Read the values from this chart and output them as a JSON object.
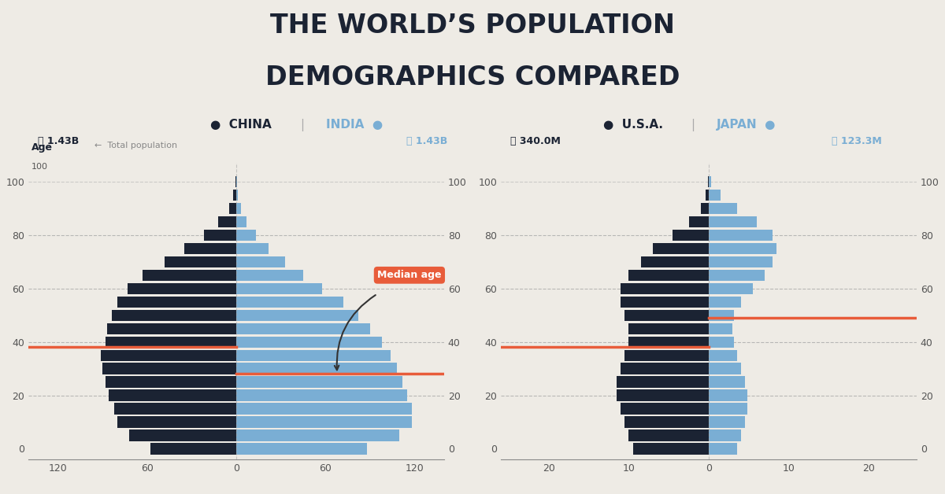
{
  "title_line1": "THE WORLD’S POPULATION",
  "title_line2": "DEMOGRAPHICS COMPARED",
  "bg_color": "#eeebe5",
  "dark_bar_color": "#1b2333",
  "light_bar_color": "#7aaed4",
  "median_line_color": "#e85c3a",
  "grid_color": "#aaaaaa",
  "left_chart": {
    "country1": "CHINA",
    "country2": "INDIA",
    "pop1": "ⓘ 1.43B",
    "pop2": "ⓘ 1.43B",
    "pop_label": "←  Total population",
    "median_age_china": 38,
    "median_age_india": 28,
    "xlim": 140,
    "xticks_vals": [
      120,
      60,
      0,
      60,
      120
    ],
    "xticks_labels": [
      "120",
      "60",
      "0",
      "60",
      "120"
    ],
    "ages": [
      0,
      5,
      10,
      15,
      20,
      25,
      30,
      35,
      40,
      45,
      50,
      55,
      60,
      65,
      70,
      75,
      80,
      85,
      90,
      95,
      100
    ],
    "china_vals": [
      58,
      72,
      80,
      82,
      86,
      88,
      90,
      91,
      88,
      87,
      84,
      80,
      73,
      63,
      48,
      35,
      22,
      12,
      5,
      2,
      0.5
    ],
    "india_vals": [
      88,
      110,
      118,
      118,
      115,
      112,
      108,
      104,
      98,
      90,
      82,
      72,
      58,
      45,
      33,
      22,
      13,
      7,
      3,
      1,
      0.3
    ]
  },
  "right_chart": {
    "country1": "U.S.A.",
    "country2": "JAPAN",
    "pop1": "ⓘ 340.0M",
    "pop2": "ⓘ 123.3M",
    "median_age_usa": 38,
    "median_age_japan": 49,
    "xlim": 26,
    "xticks_vals": [
      20,
      10,
      0,
      10,
      20
    ],
    "xticks_labels": [
      "20",
      "10",
      "0",
      "10",
      "20"
    ],
    "ages": [
      0,
      5,
      10,
      15,
      20,
      25,
      30,
      35,
      40,
      45,
      50,
      55,
      60,
      65,
      70,
      75,
      80,
      85,
      90,
      95,
      100
    ],
    "usa_vals": [
      9.5,
      10,
      10.5,
      11,
      11.5,
      11.5,
      11,
      10.5,
      10,
      10,
      10.5,
      11,
      11,
      10,
      8.5,
      7,
      4.5,
      2.5,
      1.0,
      0.4,
      0.1
    ],
    "japan_vals": [
      3.5,
      4.0,
      4.5,
      4.8,
      4.8,
      4.5,
      4.0,
      3.5,
      3.2,
      3.0,
      3.2,
      4.0,
      5.5,
      7.0,
      8.0,
      8.5,
      8.0,
      6.0,
      3.5,
      1.5,
      0.3
    ]
  },
  "median_label": "Median age"
}
